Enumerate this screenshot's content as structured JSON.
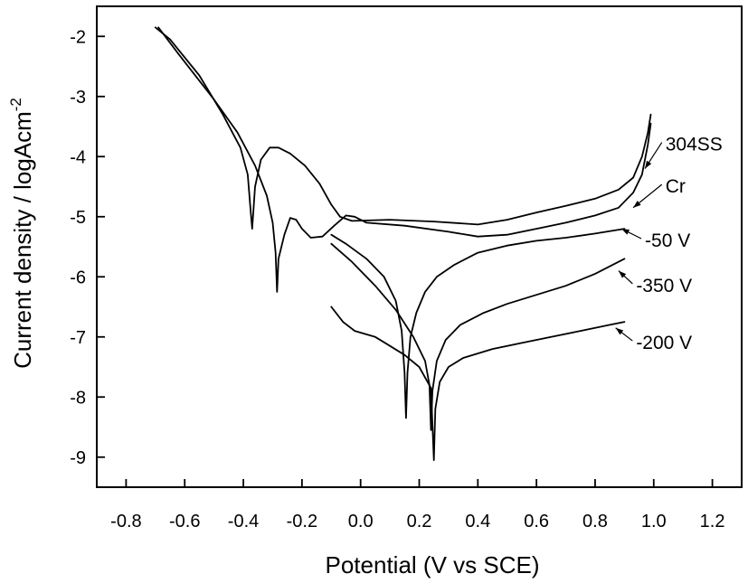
{
  "chart_data": {
    "type": "line",
    "xlabel": "Potential (V vs SCE)",
    "ylabel": "Current density / logAcm",
    "ylabel_superscript": "-2",
    "xlim": [
      -0.9,
      1.3
    ],
    "ylim": [
      -9.5,
      -1.5
    ],
    "x_ticks": [
      -0.8,
      -0.6,
      -0.4,
      -0.2,
      0.0,
      0.2,
      0.4,
      0.6,
      0.8,
      1.0,
      1.2
    ],
    "x_tick_labels": [
      "-0.8",
      "-0.6",
      "-0.4",
      "-0.2",
      "0.0",
      "0.2",
      "0.4",
      "0.6",
      "0.8",
      "1.0",
      "1.2"
    ],
    "y_ticks": [
      -9,
      -8,
      -7,
      -6,
      -5,
      -4,
      -3,
      -2
    ],
    "y_tick_labels": [
      "-9",
      "-8",
      "-7",
      "-6",
      "-5",
      "-4",
      "-3",
      "-2"
    ],
    "grid": false,
    "legend": "none",
    "series": [
      {
        "name": "304SS",
        "label_pos": [
          1.04,
          -3.9
        ],
        "pointer_end": [
          0.97,
          -4.2
        ],
        "points": [
          [
            -0.7,
            -1.85
          ],
          [
            -0.65,
            -2.05
          ],
          [
            -0.55,
            -2.65
          ],
          [
            -0.47,
            -3.3
          ],
          [
            -0.41,
            -3.85
          ],
          [
            -0.385,
            -4.3
          ],
          [
            -0.375,
            -4.9
          ],
          [
            -0.37,
            -5.2
          ],
          [
            -0.36,
            -4.5
          ],
          [
            -0.34,
            -4.05
          ],
          [
            -0.31,
            -3.85
          ],
          [
            -0.28,
            -3.85
          ],
          [
            -0.24,
            -3.95
          ],
          [
            -0.19,
            -4.15
          ],
          [
            -0.14,
            -4.45
          ],
          [
            -0.1,
            -4.8
          ],
          [
            -0.07,
            -5.0
          ],
          [
            -0.03,
            -5.07
          ],
          [
            0.1,
            -5.05
          ],
          [
            0.25,
            -5.08
          ],
          [
            0.4,
            -5.13
          ],
          [
            0.5,
            -5.05
          ],
          [
            0.6,
            -4.93
          ],
          [
            0.7,
            -4.82
          ],
          [
            0.8,
            -4.7
          ],
          [
            0.88,
            -4.55
          ],
          [
            0.93,
            -4.35
          ],
          [
            0.96,
            -4.0
          ],
          [
            0.98,
            -3.6
          ],
          [
            0.99,
            -3.3
          ]
        ]
      },
      {
        "name": "Cr",
        "label_pos": [
          1.04,
          -4.6
        ],
        "pointer_end": [
          0.93,
          -4.85
        ],
        "points": [
          [
            -0.69,
            -1.85
          ],
          [
            -0.62,
            -2.3
          ],
          [
            -0.5,
            -3.05
          ],
          [
            -0.42,
            -3.6
          ],
          [
            -0.36,
            -4.15
          ],
          [
            -0.32,
            -4.65
          ],
          [
            -0.3,
            -5.1
          ],
          [
            -0.29,
            -5.6
          ],
          [
            -0.285,
            -6.25
          ],
          [
            -0.28,
            -5.7
          ],
          [
            -0.26,
            -5.3
          ],
          [
            -0.24,
            -5.02
          ],
          [
            -0.22,
            -5.05
          ],
          [
            -0.2,
            -5.2
          ],
          [
            -0.17,
            -5.35
          ],
          [
            -0.13,
            -5.33
          ],
          [
            -0.09,
            -5.15
          ],
          [
            -0.05,
            -4.98
          ],
          [
            -0.02,
            -5.0
          ],
          [
            0.02,
            -5.1
          ],
          [
            0.15,
            -5.15
          ],
          [
            0.3,
            -5.25
          ],
          [
            0.4,
            -5.33
          ],
          [
            0.5,
            -5.3
          ],
          [
            0.6,
            -5.2
          ],
          [
            0.7,
            -5.1
          ],
          [
            0.8,
            -4.98
          ],
          [
            0.88,
            -4.85
          ],
          [
            0.93,
            -4.6
          ],
          [
            0.96,
            -4.3
          ],
          [
            0.98,
            -3.8
          ],
          [
            0.99,
            -3.45
          ]
        ]
      },
      {
        "name": "-50 V",
        "label_pos": [
          0.97,
          -5.5
        ],
        "pointer_end": [
          0.89,
          -5.2
        ],
        "points": [
          [
            -0.1,
            -5.3
          ],
          [
            -0.05,
            -5.45
          ],
          [
            0.02,
            -5.7
          ],
          [
            0.08,
            -6.0
          ],
          [
            0.12,
            -6.4
          ],
          [
            0.14,
            -6.9
          ],
          [
            0.15,
            -7.6
          ],
          [
            0.155,
            -8.35
          ],
          [
            0.16,
            -7.6
          ],
          [
            0.17,
            -7.0
          ],
          [
            0.19,
            -6.6
          ],
          [
            0.22,
            -6.25
          ],
          [
            0.26,
            -6.0
          ],
          [
            0.32,
            -5.8
          ],
          [
            0.4,
            -5.6
          ],
          [
            0.5,
            -5.48
          ],
          [
            0.6,
            -5.4
          ],
          [
            0.7,
            -5.35
          ],
          [
            0.8,
            -5.28
          ],
          [
            0.9,
            -5.2
          ]
        ]
      },
      {
        "name": "-350 V",
        "label_pos": [
          0.94,
          -6.25
        ],
        "pointer_end": [
          0.88,
          -5.9
        ],
        "points": [
          [
            -0.1,
            -5.45
          ],
          [
            -0.03,
            -5.75
          ],
          [
            0.05,
            -6.15
          ],
          [
            0.12,
            -6.55
          ],
          [
            0.18,
            -7.0
          ],
          [
            0.22,
            -7.4
          ],
          [
            0.235,
            -7.8
          ],
          [
            0.24,
            -8.55
          ],
          [
            0.245,
            -7.9
          ],
          [
            0.26,
            -7.4
          ],
          [
            0.29,
            -7.05
          ],
          [
            0.34,
            -6.8
          ],
          [
            0.42,
            -6.6
          ],
          [
            0.5,
            -6.45
          ],
          [
            0.6,
            -6.3
          ],
          [
            0.7,
            -6.15
          ],
          [
            0.8,
            -5.95
          ],
          [
            0.9,
            -5.7
          ]
        ]
      },
      {
        "name": "-200 V",
        "label_pos": [
          0.94,
          -7.2
        ],
        "pointer_end": [
          0.87,
          -6.85
        ],
        "points": [
          [
            -0.1,
            -6.5
          ],
          [
            -0.06,
            -6.75
          ],
          [
            -0.02,
            -6.9
          ],
          [
            0.05,
            -7.0
          ],
          [
            0.1,
            -7.15
          ],
          [
            0.15,
            -7.3
          ],
          [
            0.2,
            -7.5
          ],
          [
            0.24,
            -7.85
          ],
          [
            0.25,
            -9.05
          ],
          [
            0.255,
            -8.2
          ],
          [
            0.27,
            -7.75
          ],
          [
            0.3,
            -7.5
          ],
          [
            0.35,
            -7.35
          ],
          [
            0.45,
            -7.2
          ],
          [
            0.55,
            -7.1
          ],
          [
            0.65,
            -7.0
          ],
          [
            0.75,
            -6.9
          ],
          [
            0.85,
            -6.8
          ],
          [
            0.9,
            -6.75
          ]
        ]
      }
    ]
  }
}
